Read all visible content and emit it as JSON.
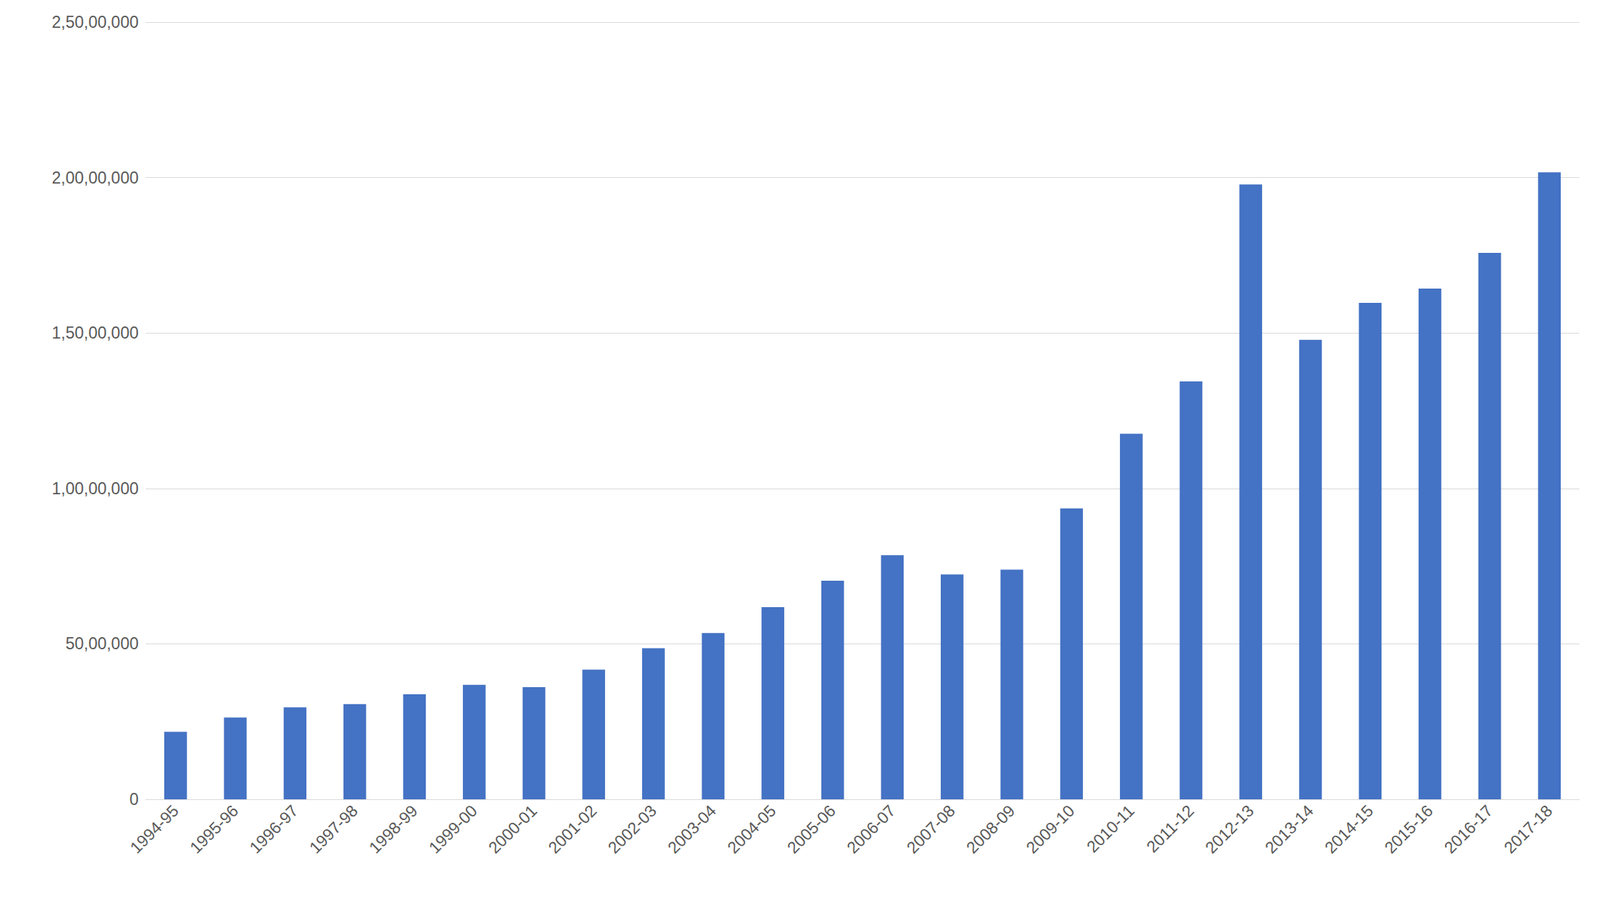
{
  "chart_data": {
    "type": "bar",
    "categories": [
      "1994-95",
      "1995-96",
      "1996-97",
      "1997-98",
      "1998-99",
      "1999-00",
      "2000-01",
      "2001-02",
      "2002-03",
      "2003-04",
      "2004-05",
      "2005-06",
      "2006-07",
      "2007-08",
      "2008-09",
      "2009-10",
      "2010-11",
      "2011-12",
      "2012-13",
      "2013-14",
      "2014-15",
      "2015-16",
      "2016-17",
      "2017-18"
    ],
    "values": [
      2170000,
      2630000,
      2960000,
      3060000,
      3380000,
      3680000,
      3610000,
      4170000,
      4860000,
      5350000,
      6180000,
      7030000,
      7850000,
      7230000,
      7390000,
      9360000,
      11760000,
      13440000,
      19780000,
      14780000,
      15970000,
      16430000,
      17580000,
      20170000
    ],
    "color": "#4472c4",
    "ylim": [
      0,
      25000000
    ],
    "yticks": [
      0,
      {
        "value": 5000000,
        "label": "50,00,000"
      },
      {
        "value": 10000000,
        "label": "1,00,00,000"
      },
      {
        "value": 15000000,
        "label": "1,50,00,000"
      },
      {
        "value": 20000000,
        "label": "2,00,00,000"
      },
      {
        "value": 25000000,
        "label": "2,50,00,000"
      }
    ],
    "grid": true
  }
}
